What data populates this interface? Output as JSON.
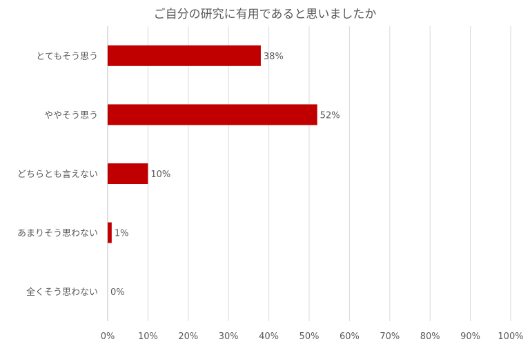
{
  "chart_data": {
    "type": "bar",
    "orientation": "horizontal",
    "title": "ご自分の研究に有用であると思いましたか",
    "categories": [
      "とてもそう思う",
      "ややそう思う",
      "どちらとも言えない",
      "あまりそう思わない",
      "全くそう思わない"
    ],
    "values": [
      38,
      52,
      10,
      1,
      0
    ],
    "data_labels": [
      "38%",
      "52%",
      "10%",
      "1%",
      "0%"
    ],
    "xlim": [
      0,
      100
    ],
    "xticks": [
      0,
      10,
      20,
      30,
      40,
      50,
      60,
      70,
      80,
      90,
      100
    ],
    "xtick_labels": [
      "0%",
      "10%",
      "20%",
      "30%",
      "40%",
      "50%",
      "60%",
      "70%",
      "80%",
      "90%",
      "100%"
    ],
    "grid": "vertical",
    "legend": "none",
    "bar_color": "#C00000"
  }
}
